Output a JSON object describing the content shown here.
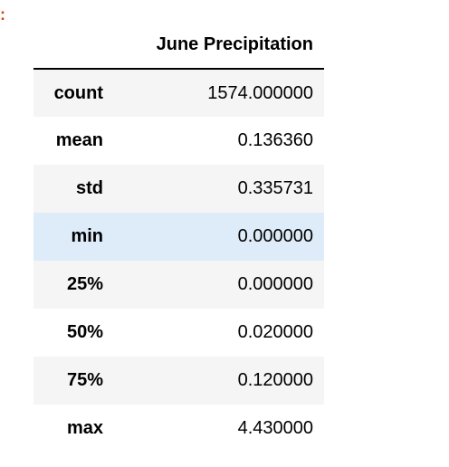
{
  "prompt_marker": ":",
  "table": {
    "index_header": "",
    "column_header": "June Precipitation",
    "colors": {
      "odd_row": "#f5f5f5",
      "hover_row": "#deebf9",
      "header_rule": "#000000"
    },
    "rows": [
      {
        "label": "count",
        "value": "1574.000000"
      },
      {
        "label": "mean",
        "value": "0.136360"
      },
      {
        "label": "std",
        "value": "0.335731"
      },
      {
        "label": "min",
        "value": "0.000000"
      },
      {
        "label": "25%",
        "value": "0.000000"
      },
      {
        "label": "50%",
        "value": "0.020000"
      },
      {
        "label": "75%",
        "value": "0.120000"
      },
      {
        "label": "max",
        "value": "4.430000"
      }
    ]
  }
}
